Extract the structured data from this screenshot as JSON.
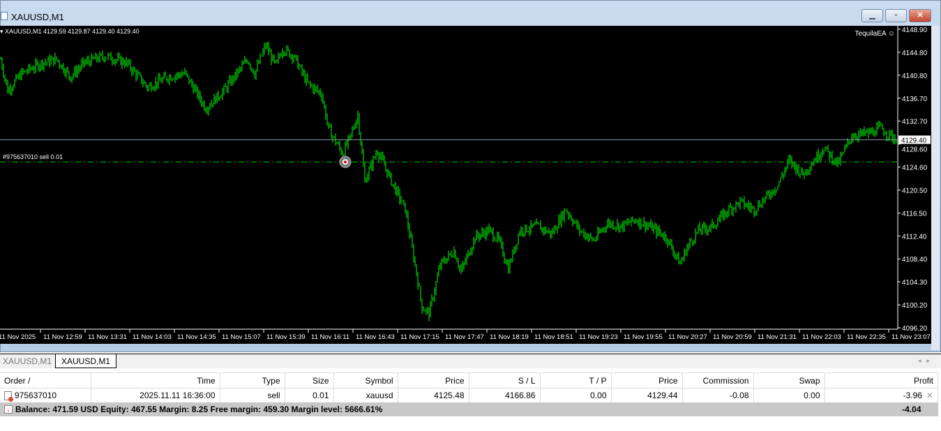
{
  "window": {
    "title": "XAUUSD,M1",
    "minimize": "▭",
    "restore": "□",
    "close": "✕"
  },
  "chart": {
    "header": "XAUUSD,M1  4129.59 4129.87 4129.40 4129.40",
    "ea_label": "TequilaEA ☺",
    "order_label": "#975637010 sell 0.01",
    "bid_label": "4129.40",
    "colors": {
      "bars": "#00ff00",
      "background": "#000000",
      "bid_line": "#8a9aa8",
      "order_line": "#00cc00"
    }
  },
  "chart_data": {
    "type": "bar",
    "symbol": "XAUUSD",
    "timeframe": "M1",
    "ylim": [
      4096.2,
      4148.9
    ],
    "price_ticks": [
      "4148.90",
      "4144.80",
      "4140.80",
      "4136.70",
      "4132.70",
      "4128.60",
      "4124.60",
      "4120.50",
      "4116.50",
      "4112.40",
      "4108.40",
      "4104.30",
      "4100.20",
      "4096.20"
    ],
    "time_ticks": [
      "11 Nov 2025",
      "11 Nov 12:59",
      "11 Nov 13:31",
      "11 Nov 14:03",
      "11 Nov 14:35",
      "11 Nov 15:07",
      "11 Nov 15:39",
      "11 Nov 16:11",
      "11 Nov 16:43",
      "11 Nov 17:15",
      "11 Nov 17:47",
      "11 Nov 18:19",
      "11 Nov 18:51",
      "11 Nov 19:23",
      "11 Nov 19:55",
      "11 Nov 20:27",
      "11 Nov 20:59",
      "11 Nov 21:31",
      "11 Nov 22:03",
      "11 Nov 22:35",
      "11 Nov 23:07"
    ],
    "bid": 4129.4,
    "order_price": 4125.48,
    "order_time": "16:36",
    "close_path": [
      [
        "12:29",
        4143.6
      ],
      [
        "12:34",
        4138.1
      ],
      [
        "12:44",
        4141.1
      ],
      [
        "12:59",
        4143.0
      ],
      [
        "13:09",
        4143.6
      ],
      [
        "13:19",
        4140.5
      ],
      [
        "13:29",
        4143.0
      ],
      [
        "13:44",
        4144.2
      ],
      [
        "13:59",
        4143.0
      ],
      [
        "14:14",
        4138.7
      ],
      [
        "14:29",
        4140.5
      ],
      [
        "14:41",
        4141.1
      ],
      [
        "14:56",
        4135.0
      ],
      [
        "15:09",
        4138.1
      ],
      [
        "15:26",
        4143.6
      ],
      [
        "15:31",
        4141.1
      ],
      [
        "15:39",
        4146.1
      ],
      [
        "15:46",
        4142.4
      ],
      [
        "15:51",
        4145.5
      ],
      [
        "15:59",
        4144.2
      ],
      [
        "16:09",
        4139.3
      ],
      [
        "16:19",
        4137.5
      ],
      [
        "16:24",
        4131.3
      ],
      [
        "16:34",
        4127.0
      ],
      [
        "16:39",
        4129.5
      ],
      [
        "16:45",
        4133.8
      ],
      [
        "16:50",
        4122.1
      ],
      [
        "16:59",
        4127.6
      ],
      [
        "17:09",
        4122.1
      ],
      [
        "17:19",
        4117.1
      ],
      [
        "17:26",
        4107.3
      ],
      [
        "17:31",
        4099.9
      ],
      [
        "17:36",
        4098.7
      ],
      [
        "17:44",
        4107.3
      ],
      [
        "17:54",
        4109.8
      ],
      [
        "17:59",
        4106.1
      ],
      [
        "18:09",
        4112.2
      ],
      [
        "18:19",
        4113.4
      ],
      [
        "18:26",
        4111.6
      ],
      [
        "18:33",
        4106.7
      ],
      [
        "18:41",
        4113.4
      ],
      [
        "18:54",
        4114.1
      ],
      [
        "19:04",
        4112.8
      ],
      [
        "19:14",
        4117.1
      ],
      [
        "19:24",
        4113.4
      ],
      [
        "19:34",
        4111.6
      ],
      [
        "19:44",
        4114.7
      ],
      [
        "19:54",
        4114.1
      ],
      [
        "20:04",
        4115.3
      ],
      [
        "20:14",
        4114.1
      ],
      [
        "20:26",
        4112.2
      ],
      [
        "20:36",
        4107.5
      ],
      [
        "20:41",
        4110.4
      ],
      [
        "20:49",
        4113.4
      ],
      [
        "20:59",
        4114.1
      ],
      [
        "21:11",
        4117.1
      ],
      [
        "21:19",
        4118.4
      ],
      [
        "21:29",
        4117.1
      ],
      [
        "21:39",
        4119.6
      ],
      [
        "21:46",
        4121.4
      ],
      [
        "21:54",
        4125.7
      ],
      [
        "22:04",
        4123.3
      ],
      [
        "22:19",
        4128.0
      ],
      [
        "22:29",
        4125.1
      ],
      [
        "22:39",
        4130.1
      ],
      [
        "22:54",
        4130.7
      ],
      [
        "22:59",
        4131.5
      ],
      [
        "23:11",
        4129.4
      ]
    ]
  },
  "tabs": [
    "XAUUSD,M1",
    "XAUUSD,M1"
  ],
  "terminal": {
    "columns": [
      "Order  /",
      "Time",
      "Type",
      "Size",
      "Symbol",
      "Price",
      "S / L",
      "T / P",
      "Price",
      "Commission",
      "Swap",
      "Profit"
    ],
    "rows": [
      [
        "975637010",
        "2025.11.11 16:36:00",
        "sell",
        "0.01",
        "xauusd",
        "4125.48",
        "4166.86",
        "0.00",
        "4129.44",
        "-0.08",
        "0.00",
        "-3.96"
      ]
    ],
    "summary": "Balance: 471.59 USD  Equity: 467.55  Margin: 8.25  Free margin: 459.30  Margin level: 5666.61%",
    "total_profit": "-4.04"
  }
}
